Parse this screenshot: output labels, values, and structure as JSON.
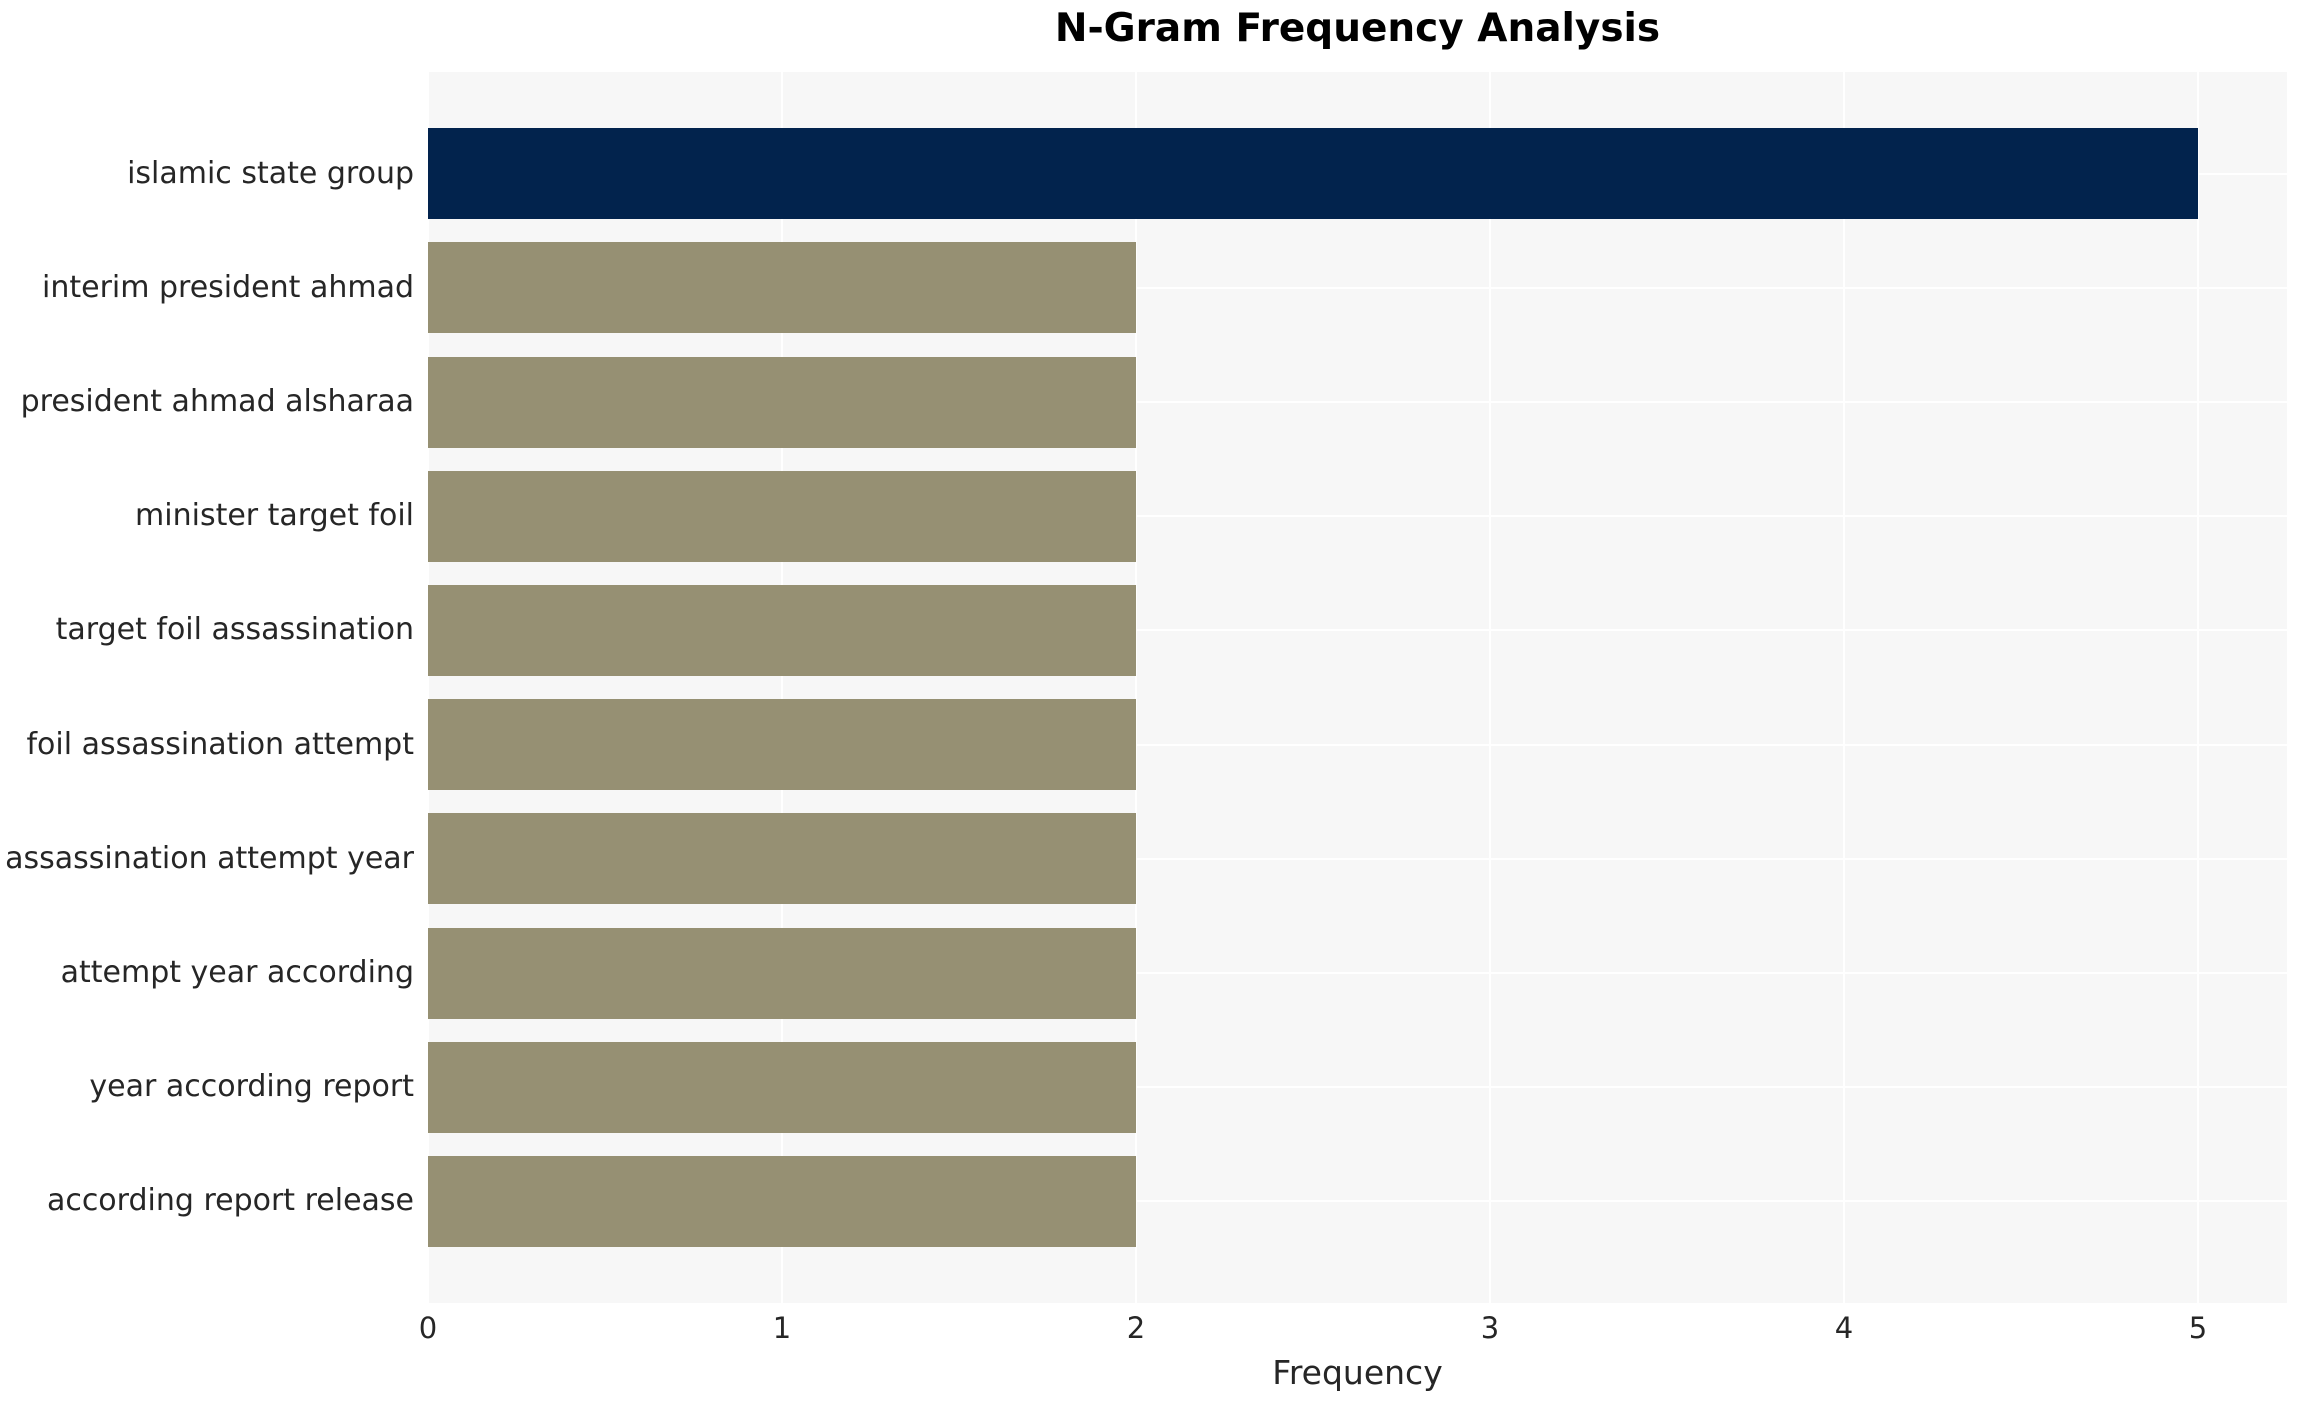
{
  "chart_data": {
    "type": "bar",
    "orientation": "horizontal",
    "title": "N-Gram Frequency Analysis",
    "xlabel": "Frequency",
    "ylabel": "",
    "categories": [
      "islamic state group",
      "interim president ahmad",
      "president ahmad alsharaa",
      "minister target foil",
      "target foil assassination",
      "foil assassination attempt",
      "assassination attempt year",
      "attempt year according",
      "year according report",
      "according report release"
    ],
    "values": [
      5,
      2,
      2,
      2,
      2,
      2,
      2,
      2,
      2,
      2
    ],
    "x_ticks": [
      0,
      1,
      2,
      3,
      4,
      5
    ],
    "xlim": [
      0,
      5.25
    ],
    "bar_height_fraction": 0.8,
    "grid": true,
    "legend_position": "none",
    "plot_background": "#f7f7f7",
    "grid_color": "#ffffff",
    "title_color": "#000000",
    "tick_color": "#262626",
    "bar_colors": [
      "#02234d",
      "#969073",
      "#969073",
      "#969073",
      "#969073",
      "#969073",
      "#969073",
      "#969073",
      "#969073",
      "#969073"
    ]
  }
}
